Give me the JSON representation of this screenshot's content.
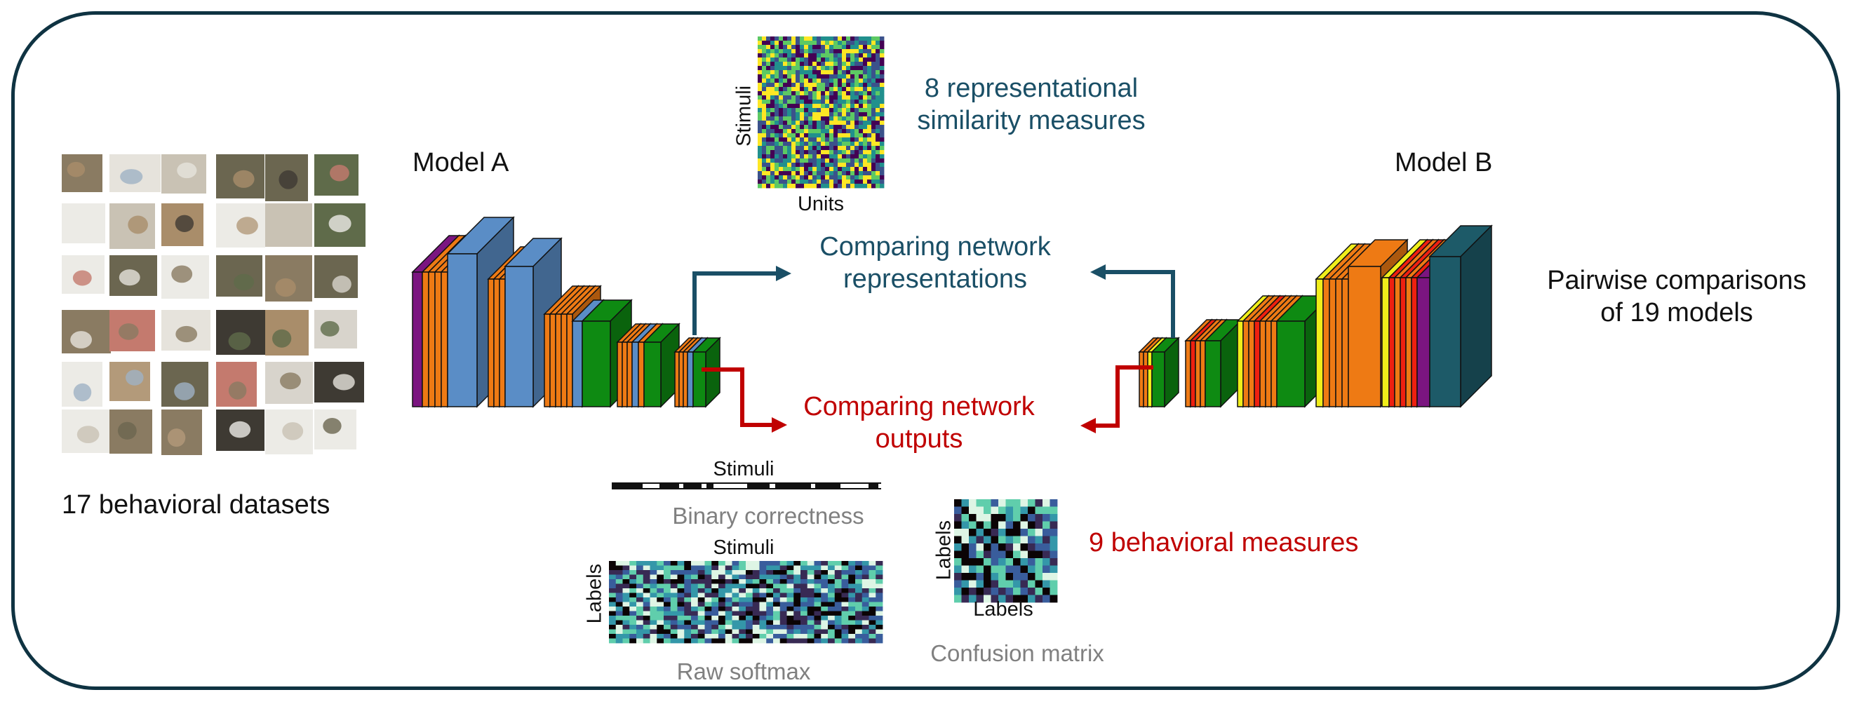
{
  "labels": {
    "datasets": "17 behavioral datasets",
    "model_a": "Model A",
    "model_b": "Model B",
    "rep_measures_line1": "8 representational",
    "rep_measures_line2": "similarity measures",
    "rep_axis_y": "Stimuli",
    "rep_axis_x": "Units",
    "compare_rep_line1": "Comparing network",
    "compare_rep_line2": "representations",
    "compare_out_line1": "Comparing network",
    "compare_out_line2": "outputs",
    "pairwise_line1": "Pairwise comparisons",
    "pairwise_line2": "of 19 models",
    "binary_axis": "Stimuli",
    "binary_caption": "Binary correctness",
    "softmax_axis_x": "Stimuli",
    "softmax_axis_y": "Labels",
    "softmax_caption": "Raw softmax",
    "confusion_axis_y": "Labels",
    "confusion_axis_x": "Labels",
    "confusion_caption": "Confusion matrix",
    "behavioral_measures": "9 behavioral measures"
  },
  "colors": {
    "border": "#0f3342",
    "teal_text": "#1a4f66",
    "red_text": "#c00000",
    "teal_arrow": "#1a4f66",
    "red_arrow": "#c00000",
    "layer_purple": "#7b1580",
    "layer_orange": "#ee7a14",
    "layer_blue": "#5a8dc6",
    "layer_green": "#0e8a12",
    "layer_yellow": "#f0ee1a",
    "layer_red": "#ee2010",
    "layer_teal": "#1d5a68",
    "viridis": [
      "#440154",
      "#3b528b",
      "#21908d",
      "#5dc963",
      "#fde725"
    ],
    "mako": [
      "#0b0405",
      "#382a54",
      "#395d9c",
      "#3497a9",
      "#60ceac",
      "#def5e5"
    ]
  },
  "icons": {
    "dataset_thumbnails": "image-grid-icon",
    "arrows": "arrow-icon"
  }
}
